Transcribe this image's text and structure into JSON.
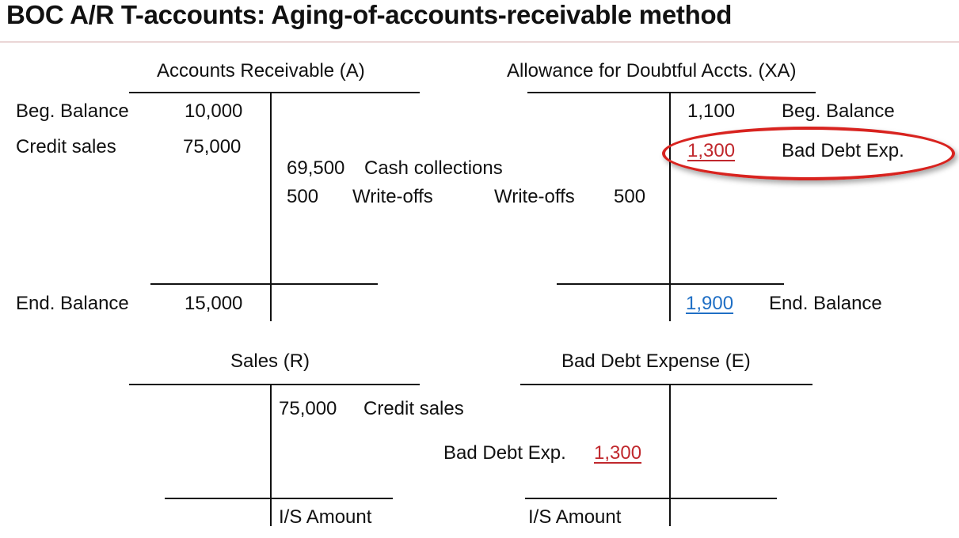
{
  "slide": {
    "title": "BOC A/R T-accounts: Aging-of-accounts-receivable method"
  },
  "accounts_receivable": {
    "name": "Accounts Receivable (A)",
    "debits": [
      {
        "label": "Beg. Balance",
        "amount": "10,000"
      },
      {
        "label": "Credit sales",
        "amount": "75,000"
      }
    ],
    "credits": [
      {
        "amount": "69,500",
        "label": "Cash collections"
      },
      {
        "amount": "500",
        "label": "Write-offs"
      }
    ],
    "ending": {
      "label": "End. Balance",
      "amount": "15,000"
    }
  },
  "allowance": {
    "name": "Allowance for Doubtful Accts. (XA)",
    "debits": [
      {
        "label": "Write-offs",
        "amount": "500"
      }
    ],
    "credits": [
      {
        "amount": "1,100",
        "label": "Beg. Balance"
      },
      {
        "amount": "1,300",
        "label": "Bad Debt Exp.",
        "highlight": "circled"
      }
    ],
    "ending": {
      "amount": "1,900",
      "label": "End. Balance"
    }
  },
  "sales": {
    "name": "Sales (R)",
    "credits": [
      {
        "amount": "75,000",
        "label": "Credit sales"
      }
    ],
    "footer": "I/S Amount"
  },
  "bad_debt_expense": {
    "name": "Bad Debt Expense (E)",
    "debits": [
      {
        "label": "Bad Debt Exp.",
        "amount": "1,300"
      }
    ],
    "footer": "I/S Amount"
  },
  "colors": {
    "highlight_amount": "#c0282d",
    "ending_allowance": "#1f6fc5",
    "ellipse": "#d8231f",
    "title_rule": "#ead6d6"
  }
}
